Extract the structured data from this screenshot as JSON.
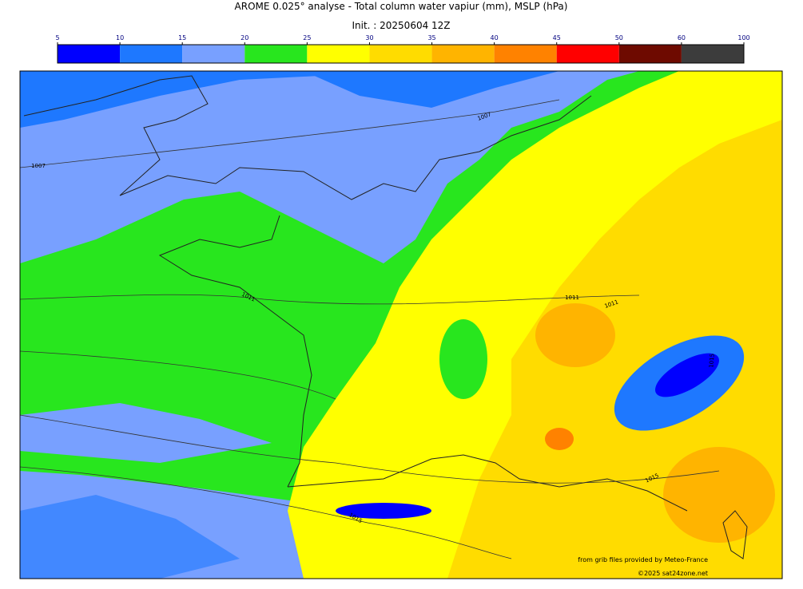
{
  "header": {
    "title": "AROME 0.025° analyse - Total column water vapiur (mm), MSLP (hPa)",
    "init": "Init. : 20250604 12Z"
  },
  "colorbar": {
    "bins": [
      5,
      10,
      15,
      20,
      25,
      30,
      35,
      40,
      45,
      50,
      60,
      100
    ],
    "colors": [
      "#0000ff",
      "#1e78ff",
      "#78a0ff",
      "#28e61e",
      "#ffff00",
      "#ffdc00",
      "#ffb400",
      "#ff8200",
      "#ff0000",
      "#6e0a00",
      "#3c3c3c"
    ]
  },
  "isobars": [
    "1007",
    "1007",
    "1011",
    "1011",
    "1011",
    "1015",
    "1015",
    "1015"
  ],
  "credits": [
    "from grib files provided by Meteo-France",
    "©2025 sat24zone.net"
  ]
}
